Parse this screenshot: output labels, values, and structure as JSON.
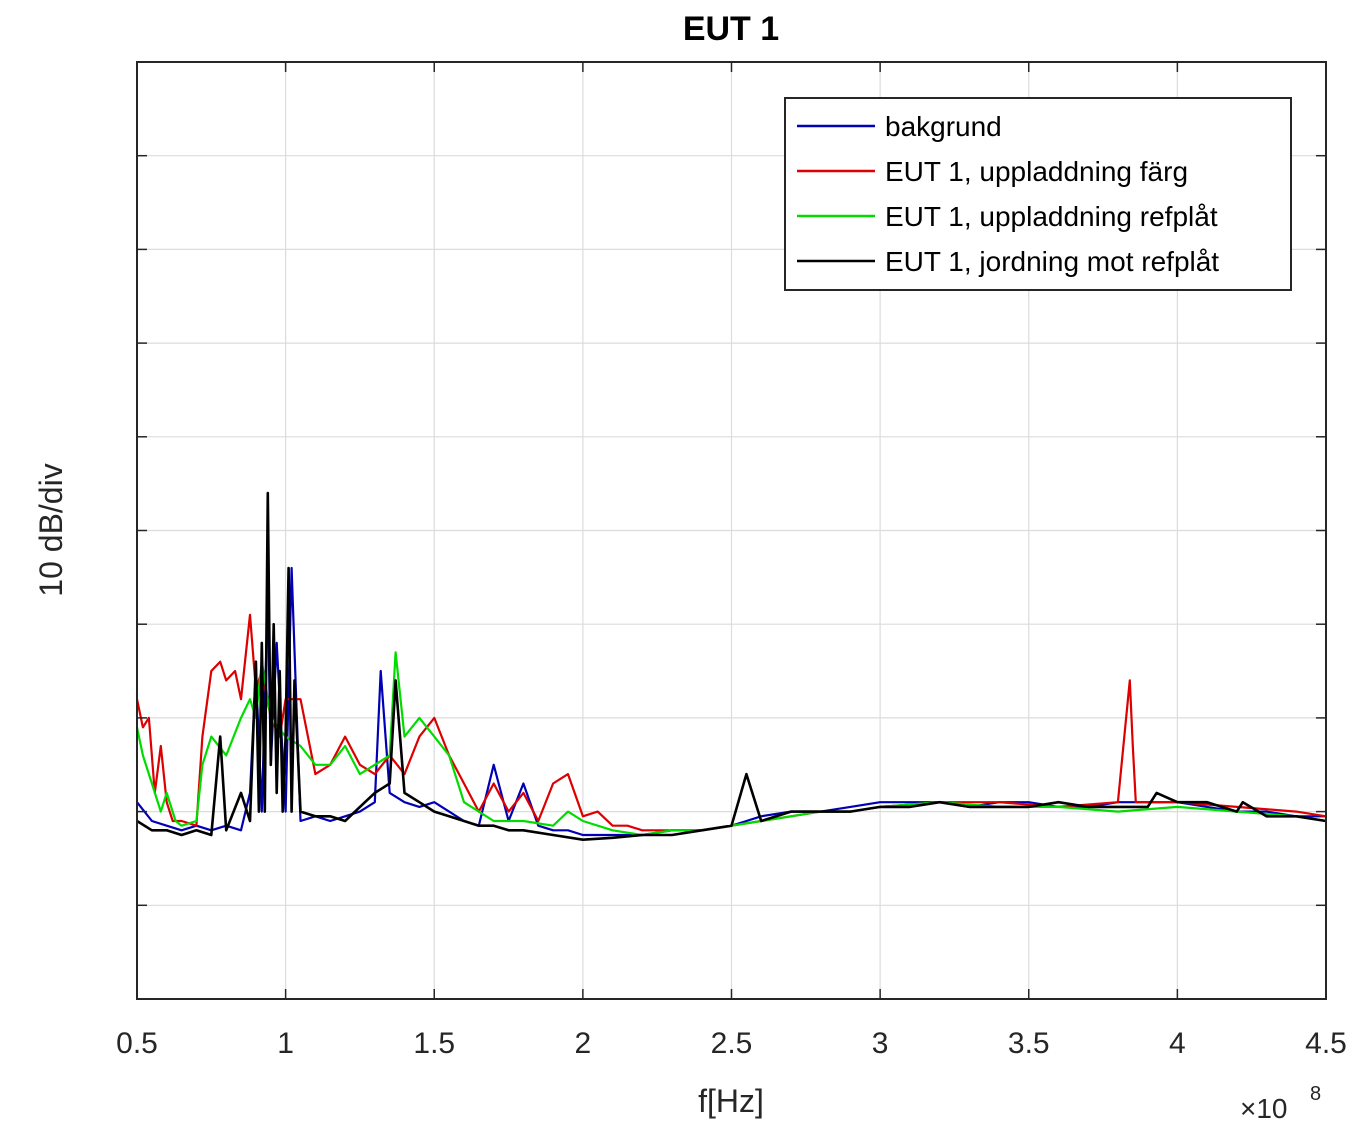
{
  "chart_data": {
    "type": "line",
    "title": "EUT 1",
    "xlabel": "f[Hz]",
    "ylabel": "10 dB/div",
    "x_exponent_label": "×10",
    "x_exponent_power": "8",
    "xlim": [
      0.5,
      4.5
    ],
    "ylim": [
      0,
      10
    ],
    "x_ticks": [
      0.5,
      1,
      1.5,
      2,
      2.5,
      3,
      3.5,
      4,
      4.5
    ],
    "x_tick_labels": [
      "0.5",
      "1",
      "1.5",
      "2",
      "2.5",
      "3",
      "3.5",
      "4",
      "4.5"
    ],
    "y_tick_values": [
      1,
      2,
      3,
      4,
      5,
      6,
      7,
      8,
      9
    ],
    "y_tick_labels_shown": false,
    "grid": true,
    "legend_position": "top-right",
    "series": [
      {
        "name": "bakgrund",
        "color": "#0000b4",
        "x": [
          0.5,
          0.55,
          0.6,
          0.65,
          0.7,
          0.75,
          0.8,
          0.85,
          0.88,
          0.9,
          0.92,
          0.94,
          0.95,
          0.97,
          1.0,
          1.02,
          1.05,
          1.1,
          1.15,
          1.2,
          1.25,
          1.3,
          1.32,
          1.35,
          1.4,
          1.45,
          1.5,
          1.55,
          1.6,
          1.65,
          1.7,
          1.75,
          1.8,
          1.85,
          1.9,
          1.95,
          2.0,
          2.1,
          2.2,
          2.3,
          2.4,
          2.5,
          2.55,
          2.6,
          2.7,
          2.8,
          2.9,
          3.0,
          3.1,
          3.2,
          3.3,
          3.4,
          3.5,
          3.6,
          3.7,
          3.8,
          3.9,
          4.0,
          4.1,
          4.2,
          4.3,
          4.4,
          4.5
        ],
        "y": [
          2.1,
          1.9,
          1.85,
          1.8,
          1.85,
          1.8,
          1.85,
          1.8,
          2.2,
          3.5,
          2.0,
          4.3,
          2.5,
          3.8,
          2.0,
          4.6,
          1.9,
          1.95,
          1.9,
          1.95,
          2.0,
          2.1,
          3.5,
          2.2,
          2.1,
          2.05,
          2.1,
          2.0,
          1.9,
          1.85,
          2.5,
          1.9,
          2.3,
          1.85,
          1.8,
          1.8,
          1.75,
          1.75,
          1.75,
          1.8,
          1.8,
          1.85,
          1.9,
          1.95,
          2.0,
          2.0,
          2.05,
          2.1,
          2.1,
          2.1,
          2.05,
          2.1,
          2.1,
          2.05,
          2.05,
          2.1,
          2.1,
          2.1,
          2.05,
          2.0,
          2.0,
          1.95,
          1.95
        ]
      },
      {
        "name": "EUT 1, uppladdning färg",
        "color": "#dc0000",
        "x": [
          0.5,
          0.52,
          0.54,
          0.56,
          0.58,
          0.6,
          0.62,
          0.65,
          0.7,
          0.72,
          0.75,
          0.78,
          0.8,
          0.83,
          0.85,
          0.88,
          0.9,
          0.92,
          0.95,
          0.98,
          1.0,
          1.05,
          1.1,
          1.15,
          1.2,
          1.25,
          1.3,
          1.35,
          1.4,
          1.45,
          1.5,
          1.55,
          1.6,
          1.65,
          1.7,
          1.75,
          1.8,
          1.85,
          1.9,
          1.95,
          2.0,
          2.05,
          2.1,
          2.15,
          2.2,
          2.3,
          2.4,
          2.5,
          2.6,
          2.7,
          2.8,
          2.9,
          3.0,
          3.2,
          3.4,
          3.6,
          3.8,
          3.84,
          3.85,
          3.86,
          3.9,
          4.0,
          4.2,
          4.4,
          4.5
        ],
        "y": [
          3.2,
          2.9,
          3.0,
          2.2,
          2.7,
          2.1,
          1.9,
          1.9,
          1.85,
          2.8,
          3.5,
          3.6,
          3.4,
          3.5,
          3.2,
          4.1,
          3.3,
          3.5,
          3.0,
          2.8,
          3.2,
          3.2,
          2.4,
          2.5,
          2.8,
          2.5,
          2.4,
          2.6,
          2.4,
          2.8,
          3.0,
          2.6,
          2.3,
          2.0,
          2.3,
          2.0,
          2.2,
          1.9,
          2.3,
          2.4,
          1.95,
          2.0,
          1.85,
          1.85,
          1.8,
          1.8,
          1.8,
          1.85,
          1.9,
          1.95,
          2.0,
          2.0,
          2.05,
          2.1,
          2.1,
          2.05,
          2.1,
          3.4,
          2.7,
          2.1,
          2.1,
          2.1,
          2.05,
          2.0,
          1.95
        ]
      },
      {
        "name": "EUT 1, uppladdning refplåt",
        "color": "#00dc00",
        "x": [
          0.5,
          0.52,
          0.55,
          0.58,
          0.6,
          0.63,
          0.65,
          0.7,
          0.72,
          0.75,
          0.8,
          0.85,
          0.88,
          0.9,
          0.92,
          0.95,
          1.0,
          1.05,
          1.1,
          1.15,
          1.2,
          1.25,
          1.3,
          1.35,
          1.37,
          1.4,
          1.45,
          1.5,
          1.55,
          1.6,
          1.65,
          1.7,
          1.8,
          1.9,
          1.95,
          2.0,
          2.1,
          2.2,
          2.3,
          2.4,
          2.5,
          2.6,
          2.7,
          2.8,
          2.9,
          3.0,
          3.2,
          3.4,
          3.6,
          3.8,
          4.0,
          4.2,
          4.4,
          4.5
        ],
        "y": [
          2.9,
          2.6,
          2.3,
          2.0,
          2.2,
          1.9,
          1.85,
          1.9,
          2.5,
          2.8,
          2.6,
          3.0,
          3.2,
          3.0,
          3.6,
          3.0,
          2.8,
          2.7,
          2.5,
          2.5,
          2.7,
          2.4,
          2.5,
          2.6,
          3.7,
          2.8,
          3.0,
          2.8,
          2.6,
          2.1,
          2.0,
          1.9,
          1.9,
          1.85,
          2.0,
          1.9,
          1.8,
          1.75,
          1.8,
          1.8,
          1.85,
          1.9,
          1.95,
          2.0,
          2.0,
          2.05,
          2.1,
          2.05,
          2.05,
          2.0,
          2.05,
          2.0,
          1.95,
          1.9
        ]
      },
      {
        "name": "EUT 1, jordning mot refplåt",
        "color": "#000000",
        "x": [
          0.5,
          0.55,
          0.6,
          0.65,
          0.7,
          0.75,
          0.78,
          0.8,
          0.85,
          0.88,
          0.9,
          0.91,
          0.92,
          0.93,
          0.94,
          0.95,
          0.96,
          0.97,
          0.98,
          0.99,
          1.0,
          1.01,
          1.02,
          1.03,
          1.05,
          1.1,
          1.15,
          1.2,
          1.25,
          1.3,
          1.35,
          1.37,
          1.4,
          1.45,
          1.5,
          1.55,
          1.6,
          1.65,
          1.7,
          1.75,
          1.8,
          1.9,
          2.0,
          2.1,
          2.2,
          2.3,
          2.4,
          2.5,
          2.55,
          2.6,
          2.7,
          2.8,
          2.9,
          3.0,
          3.1,
          3.2,
          3.3,
          3.4,
          3.5,
          3.6,
          3.7,
          3.8,
          3.9,
          3.93,
          4.0,
          4.1,
          4.2,
          4.22,
          4.3,
          4.4,
          4.5
        ],
        "y": [
          1.9,
          1.8,
          1.8,
          1.75,
          1.8,
          1.75,
          2.8,
          1.8,
          2.2,
          1.9,
          3.6,
          2.0,
          3.8,
          2.0,
          5.4,
          2.5,
          4.0,
          2.2,
          3.5,
          2.0,
          2.8,
          4.6,
          2.0,
          3.4,
          2.0,
          1.95,
          1.95,
          1.9,
          2.05,
          2.2,
          2.3,
          3.4,
          2.2,
          2.1,
          2.0,
          1.95,
          1.9,
          1.85,
          1.85,
          1.8,
          1.8,
          1.75,
          1.7,
          1.72,
          1.75,
          1.75,
          1.8,
          1.85,
          2.4,
          1.9,
          2.0,
          2.0,
          2.0,
          2.05,
          2.05,
          2.1,
          2.05,
          2.05,
          2.05,
          2.1,
          2.05,
          2.05,
          2.05,
          2.2,
          2.1,
          2.1,
          2.0,
          2.1,
          1.95,
          1.95,
          1.9
        ]
      }
    ]
  }
}
